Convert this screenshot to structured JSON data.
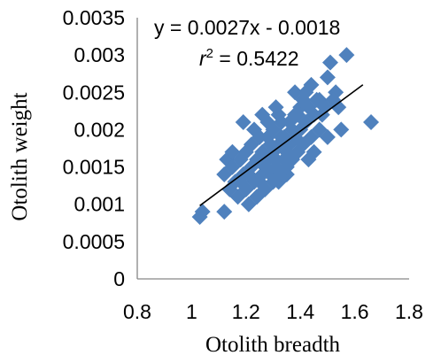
{
  "chart_data": {
    "type": "scatter",
    "xlabel": "Otolith breadth",
    "ylabel": "Otolith weight",
    "xlim": [
      0.8,
      1.8
    ],
    "ylim": [
      0,
      0.0035
    ],
    "x_ticks": [
      "0.8",
      "1",
      "1.2",
      "1.4",
      "1.6",
      "1.8"
    ],
    "y_ticks": [
      "0",
      "0.0005",
      "0.001",
      "0.0015",
      "0.002",
      "0.0025",
      "0.003",
      "0.0035"
    ],
    "grid": false,
    "marker_color": "#4f81bd",
    "trendline": {
      "equation": "y = 0.0027x - 0.0018",
      "r2_prefix": "r",
      "r2_sup": "2",
      "r2_suffix": " = 0.5422",
      "slope": 0.0027,
      "intercept": -0.0018,
      "x_range": [
        1.03,
        1.63
      ],
      "color": "#000000"
    },
    "series": [
      {
        "points": [
          [
            1.03,
            0.00083
          ],
          [
            1.04,
            0.0009
          ],
          [
            1.12,
            0.0009
          ],
          [
            1.19,
            0.0021
          ],
          [
            1.31,
            0.0023
          ],
          [
            1.38,
            0.0025
          ],
          [
            1.42,
            0.0025
          ],
          [
            1.44,
            0.0026
          ],
          [
            1.47,
            0.0024
          ],
          [
            1.51,
            0.0029
          ],
          [
            1.53,
            0.0025
          ],
          [
            1.57,
            0.003
          ],
          [
            1.55,
            0.002
          ],
          [
            1.66,
            0.0021
          ],
          [
            1.5,
            0.0027
          ],
          [
            1.54,
            0.0023
          ],
          [
            1.12,
            0.0014
          ],
          [
            1.13,
            0.0016
          ],
          [
            1.14,
            0.0012
          ],
          [
            1.15,
            0.0015
          ],
          [
            1.16,
            0.0013
          ],
          [
            1.17,
            0.0011
          ],
          [
            1.18,
            0.0016
          ],
          [
            1.19,
            0.0014
          ],
          [
            1.2,
            0.0012
          ],
          [
            1.2,
            0.0017
          ],
          [
            1.21,
            0.001
          ],
          [
            1.22,
            0.0015
          ],
          [
            1.22,
            0.0018
          ],
          [
            1.23,
            0.0013
          ],
          [
            1.24,
            0.0016
          ],
          [
            1.24,
            0.0011
          ],
          [
            1.25,
            0.0019
          ],
          [
            1.26,
            0.0014
          ],
          [
            1.26,
            0.0017
          ],
          [
            1.27,
            0.0012
          ],
          [
            1.28,
            0.0016
          ],
          [
            1.28,
            0.0019
          ],
          [
            1.29,
            0.0014
          ],
          [
            1.3,
            0.0017
          ],
          [
            1.3,
            0.002
          ],
          [
            1.31,
            0.0015
          ],
          [
            1.32,
            0.0018
          ],
          [
            1.32,
            0.0013
          ],
          [
            1.33,
            0.0021
          ],
          [
            1.34,
            0.0016
          ],
          [
            1.34,
            0.0019
          ],
          [
            1.35,
            0.0014
          ],
          [
            1.36,
            0.0018
          ],
          [
            1.36,
            0.0021
          ],
          [
            1.37,
            0.0016
          ],
          [
            1.38,
            0.0019
          ],
          [
            1.38,
            0.0022
          ],
          [
            1.39,
            0.0017
          ],
          [
            1.4,
            0.002
          ],
          [
            1.4,
            0.0023
          ],
          [
            1.41,
            0.0018
          ],
          [
            1.42,
            0.0021
          ],
          [
            1.43,
            0.0023
          ],
          [
            1.44,
            0.0019
          ],
          [
            1.45,
            0.0022
          ],
          [
            1.46,
            0.0024
          ],
          [
            1.47,
            0.002
          ],
          [
            1.48,
            0.0022
          ],
          [
            1.49,
            0.0023
          ],
          [
            1.5,
            0.0019
          ],
          [
            1.52,
            0.0024
          ],
          [
            1.25,
            0.0013
          ],
          [
            1.27,
            0.0015
          ],
          [
            1.29,
            0.0018
          ],
          [
            1.31,
            0.0016
          ],
          [
            1.33,
            0.0014
          ],
          [
            1.35,
            0.0017
          ],
          [
            1.37,
            0.002
          ],
          [
            1.39,
            0.0022
          ],
          [
            1.41,
            0.0024
          ],
          [
            1.3,
            0.0013
          ],
          [
            1.35,
            0.0015
          ],
          [
            1.28,
            0.0021
          ],
          [
            1.23,
            0.002
          ],
          [
            1.15,
            0.0017
          ],
          [
            1.18,
            0.0013
          ],
          [
            1.21,
            0.0014
          ],
          [
            1.33,
            0.0019
          ],
          [
            1.45,
            0.0017
          ],
          [
            1.43,
            0.0016
          ],
          [
            1.26,
            0.0022
          ],
          [
            1.32,
            0.0022
          ]
        ]
      }
    ]
  }
}
